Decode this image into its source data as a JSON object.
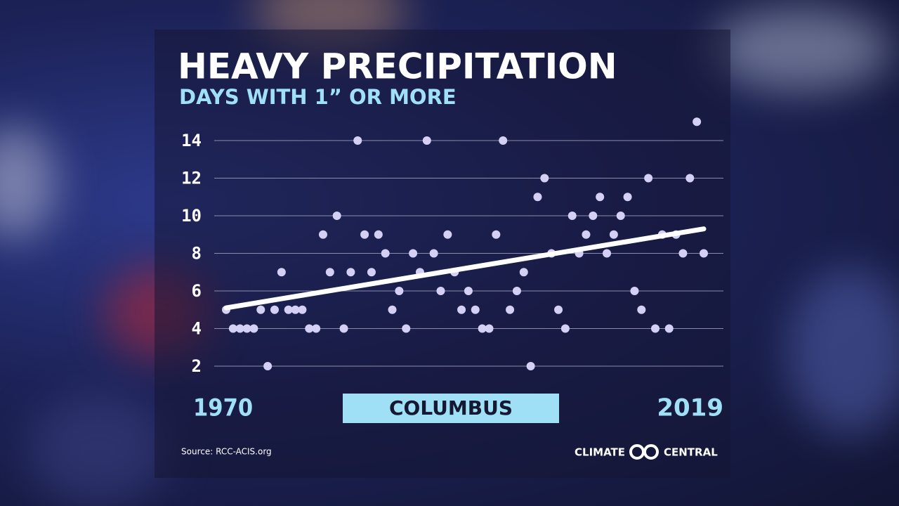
{
  "chart_data": {
    "type": "scatter",
    "title": "HEAVY PRECIPITATION",
    "subtitle": "DAYS WITH 1” OR MORE",
    "x_label_start": "1970",
    "x_label_end": "2019",
    "location": "COLUMBUS",
    "source": "Source: RCC-ACIS.org",
    "brand_left": "CLIMATE",
    "brand_right": "CENTRAL",
    "color": "#d4cff5",
    "values": [
      5,
      4,
      4,
      4,
      4,
      5,
      2,
      5,
      7,
      5,
      5,
      5,
      4,
      4,
      9,
      7,
      10,
      4,
      7,
      14,
      9,
      7,
      9,
      8,
      5,
      6,
      4,
      8,
      7,
      14,
      8,
      6,
      9,
      7,
      5,
      6,
      5,
      4,
      4,
      9,
      14,
      5,
      6,
      7,
      2,
      11,
      12,
      8,
      5,
      4,
      10,
      8,
      9,
      10,
      11,
      8,
      9,
      10,
      11,
      6,
      5,
      12,
      4,
      9,
      4,
      9,
      8,
      12,
      15,
      8
    ],
    "trend": {
      "start": 5.1,
      "end": 9.3,
      "color": "#ffffff"
    },
    "ylim": [
      0,
      16
    ],
    "yticks": [
      2,
      4,
      6,
      8,
      10,
      12,
      14
    ],
    "grid": true
  }
}
